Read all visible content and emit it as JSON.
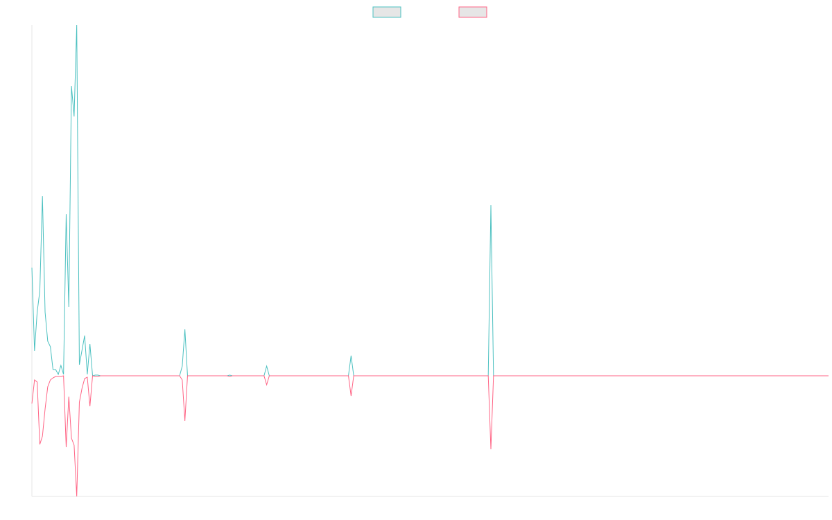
{
  "chart_data": {
    "type": "line",
    "legend": "top",
    "grid": false,
    "xlim": [
      0,
      302
    ],
    "ylim": [
      -1.74,
      5.06
    ],
    "x": [
      0,
      1,
      2,
      3,
      4,
      5,
      6,
      7,
      8,
      9,
      10,
      11,
      12,
      13,
      14,
      15,
      16,
      17,
      18,
      19,
      20,
      21,
      22,
      23,
      24,
      25,
      26,
      56,
      57,
      58,
      59,
      74,
      75,
      76,
      88,
      89,
      90,
      120,
      121,
      122,
      173,
      174,
      175,
      302
    ],
    "series": [
      {
        "color": "#4bc0c0",
        "values": [
          1.56,
          0.36,
          0.92,
          1.22,
          2.59,
          0.92,
          0.5,
          0.42,
          0.09,
          0.09,
          0.02,
          0.15,
          0.02,
          2.33,
          0.99,
          4.18,
          3.74,
          5.06,
          0.16,
          0.37,
          0.58,
          0.02,
          0.46,
          0,
          0.01,
          0.01,
          0,
          0,
          0.14,
          0.67,
          0,
          0,
          0.01,
          0,
          0,
          0.14,
          0,
          0,
          0.29,
          0,
          0,
          2.46,
          0,
          0
        ]
      },
      {
        "color": "#ff6384",
        "values": [
          -0.4,
          -0.06,
          -0.09,
          -0.99,
          -0.87,
          -0.48,
          -0.16,
          -0.06,
          -0.03,
          -0.01,
          -0.01,
          -0.01,
          0,
          -1.03,
          -0.3,
          -0.9,
          -1.0,
          -1.74,
          -0.38,
          -0.18,
          -0.04,
          -0.02,
          -0.44,
          0,
          -0.01,
          -0.01,
          0,
          0,
          -0.06,
          -0.65,
          0,
          0,
          -0.01,
          0,
          0,
          -0.13,
          0,
          0,
          -0.29,
          0,
          0,
          -1.06,
          0,
          0
        ]
      }
    ]
  }
}
